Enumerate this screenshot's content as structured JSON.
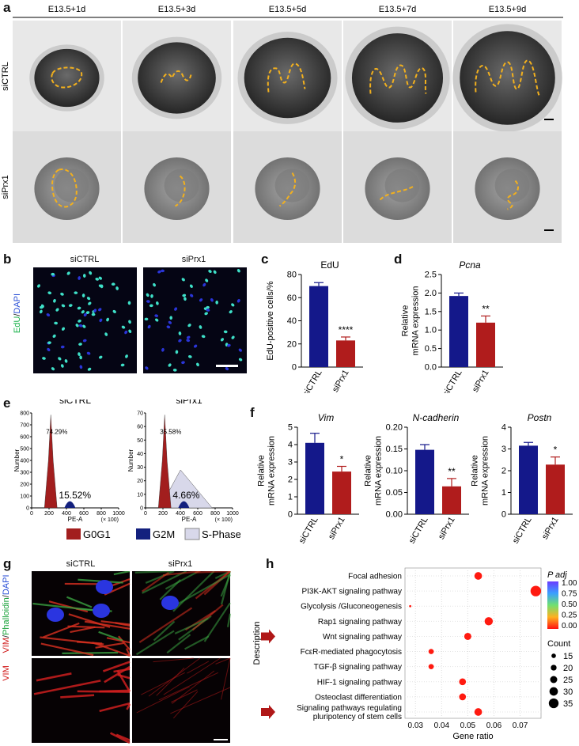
{
  "panel_labels": [
    "a",
    "b",
    "c",
    "d",
    "e",
    "f",
    "g",
    "h"
  ],
  "panel_a": {
    "timepoints": [
      "E13.5+1d",
      "E13.5+3d",
      "E13.5+5d",
      "E13.5+7d",
      "E13.5+9d"
    ],
    "rows": [
      "siCTRL",
      "siPrx1"
    ]
  },
  "panel_b": {
    "columns": [
      "siCTRL",
      "siPrx1"
    ],
    "stain_green": "EdU",
    "stain_blue": "DAPI"
  },
  "panel_e": {
    "titles": [
      "siCTRL",
      "siPrx1"
    ],
    "ylabel": "Number",
    "xlabel": "PE-A",
    "xscale_note": "(× 100)",
    "siCTRL_g0g1": "74.29%",
    "siCTRL_s": "15.52%",
    "siPrx1_g0g1": "35.58%",
    "siPrx1_s": "4.66%",
    "legend": [
      "G0G1",
      "G2M",
      "S-Phase"
    ],
    "colors": {
      "G0G1": "#a21e1e",
      "G2M": "#13207e",
      "S": "#d8d8ea"
    }
  },
  "panel_g": {
    "columns": [
      "siCTRL",
      "siPrx1"
    ],
    "stain_red": "VIM",
    "stain_green": "Phalloidin",
    "stain_blue": "DAPI"
  },
  "chart_data": [
    {
      "panel": "c",
      "type": "bar",
      "title": "EdU",
      "ylabel": "EdU-positive cells/%",
      "categories": [
        "siCTRL",
        "siPrx1"
      ],
      "values": [
        70,
        23
      ],
      "errors": [
        3,
        3
      ],
      "ylim": [
        0,
        80
      ],
      "yticks": [
        0,
        20,
        40,
        60,
        80
      ],
      "significance": "****",
      "colors": [
        "#14188a",
        "#b01c1c"
      ]
    },
    {
      "panel": "d",
      "type": "bar",
      "title": "Pcna",
      "ylabel": "Relative mRNA expression",
      "categories": [
        "siCTRL",
        "siPrx1"
      ],
      "values": [
        1.92,
        1.2
      ],
      "errors": [
        0.08,
        0.18
      ],
      "ylim": [
        0,
        2.5
      ],
      "yticks": [
        0.0,
        0.5,
        1.0,
        1.5,
        2.0,
        2.5
      ],
      "significance": "**",
      "colors": [
        "#14188a",
        "#b01c1c"
      ]
    },
    {
      "panel": "f1",
      "type": "bar",
      "title": "Vim",
      "ylabel": "Relative mRNA expression",
      "categories": [
        "siCTRL",
        "siPrx1"
      ],
      "values": [
        4.1,
        2.45
      ],
      "errors": [
        0.55,
        0.3
      ],
      "ylim": [
        0,
        5
      ],
      "yticks": [
        0,
        1,
        2,
        3,
        4,
        5
      ],
      "significance": "*",
      "colors": [
        "#14188a",
        "#b01c1c"
      ]
    },
    {
      "panel": "f2",
      "type": "bar",
      "title": "N-cadherin",
      "ylabel": "Relative mRNA expression",
      "categories": [
        "siCTRL",
        "siPrx1"
      ],
      "values": [
        0.148,
        0.064
      ],
      "errors": [
        0.012,
        0.018
      ],
      "ylim": [
        0,
        0.2
      ],
      "yticks": [
        0.0,
        0.05,
        0.1,
        0.15,
        0.2
      ],
      "significance": "**",
      "colors": [
        "#14188a",
        "#b01c1c"
      ]
    },
    {
      "panel": "f3",
      "type": "bar",
      "title": "Postn",
      "ylabel": "Relative mRNA expression",
      "categories": [
        "siCTRL",
        "siPrx1"
      ],
      "values": [
        3.15,
        2.28
      ],
      "errors": [
        0.15,
        0.35
      ],
      "ylim": [
        0,
        4
      ],
      "yticks": [
        0,
        1,
        2,
        3,
        4
      ],
      "significance": "*",
      "colors": [
        "#14188a",
        "#b01c1c"
      ]
    },
    {
      "panel": "h",
      "type": "scatter",
      "xlabel": "Gene ratio",
      "ylabel": "Description",
      "xlim": [
        0.026,
        0.078
      ],
      "xticks": [
        0.03,
        0.04,
        0.05,
        0.06,
        0.07
      ],
      "categories": [
        "Focal adhesion",
        "PI3K-AKT signaling pathway",
        "Glycolysis /Gluconeogenesis",
        "Rap1 signaling pathway",
        "Wnt signaling pathway",
        "FcεR-mediated phagocytosis",
        "TGF-β signaling pathway",
        "HIF-1 signaling pathway",
        "Osteoclast differentiation",
        "Signaling pathways regulating pluripotency of stem cells"
      ],
      "gene_ratio": [
        0.054,
        0.076,
        0.028,
        0.058,
        0.05,
        0.036,
        0.036,
        0.048,
        0.048,
        0.054
      ],
      "count": [
        27,
        38,
        13,
        29,
        25,
        18,
        18,
        24,
        24,
        27
      ],
      "p_adj": [
        0.02,
        0.0,
        0.05,
        0.0,
        0.0,
        0.02,
        0.02,
        0.0,
        0.0,
        0.02
      ],
      "highlighted": [
        "Wnt signaling pathway",
        "Signaling pathways regulating pluripotency of stem cells"
      ],
      "legend_p_title": "P adj",
      "legend_p_ticks": [
        "1.00",
        "0.75",
        "0.50",
        "0.25",
        "0.00"
      ],
      "legend_count_title": "Count",
      "legend_count_values": [
        15,
        20,
        25,
        30,
        35
      ]
    }
  ]
}
